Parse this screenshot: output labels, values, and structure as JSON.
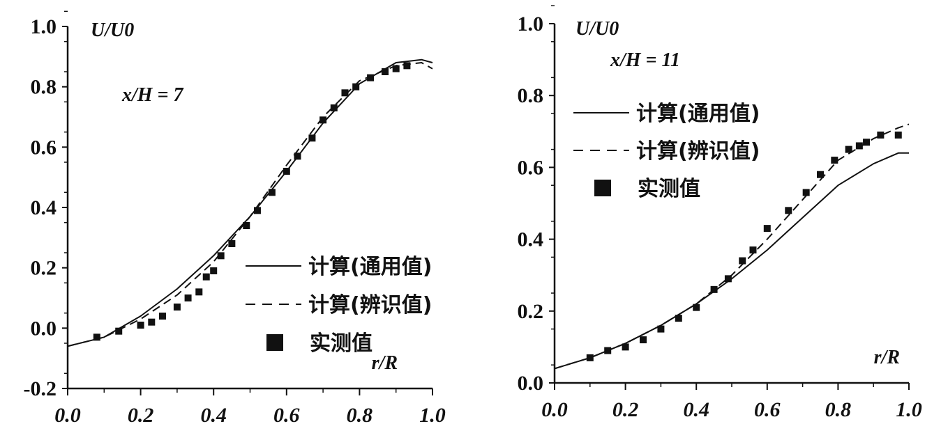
{
  "chart_data": [
    {
      "type": "line",
      "ylabel": "U/U0",
      "xlabel": "r/R",
      "annotation": "x/H = 7",
      "xlim": [
        0,
        1.0
      ],
      "ylim": [
        -0.2,
        1.0
      ],
      "xticks": [
        "0.0",
        "0.2",
        "0.4",
        "0.6",
        "0.8",
        "1.0"
      ],
      "yticks": [
        "-0.2",
        "0.0",
        "0.2",
        "0.4",
        "0.6",
        "0.8",
        "1.0"
      ],
      "legend": {
        "placement": "bottom-right",
        "entries": [
          "计算(通用值)",
          "计算(辨识值)",
          "实测值"
        ]
      },
      "series": [
        {
          "name": "计算(通用值)",
          "style": "solid",
          "x": [
            0,
            0.1,
            0.2,
            0.3,
            0.4,
            0.5,
            0.6,
            0.7,
            0.8,
            0.9,
            0.97,
            1.0
          ],
          "y": [
            -0.06,
            -0.03,
            0.04,
            0.13,
            0.24,
            0.37,
            0.52,
            0.68,
            0.81,
            0.88,
            0.89,
            0.88
          ]
        },
        {
          "name": "计算(辨识值)",
          "style": "dashed",
          "x": [
            0,
            0.1,
            0.2,
            0.3,
            0.4,
            0.5,
            0.6,
            0.7,
            0.8,
            0.9,
            0.97,
            1.0
          ],
          "y": [
            -0.06,
            -0.03,
            0.03,
            0.11,
            0.22,
            0.37,
            0.54,
            0.7,
            0.82,
            0.87,
            0.88,
            0.86
          ]
        },
        {
          "name": "实测值",
          "style": "markers",
          "x": [
            0.08,
            0.14,
            0.2,
            0.23,
            0.26,
            0.3,
            0.33,
            0.36,
            0.38,
            0.4,
            0.42,
            0.45,
            0.49,
            0.52,
            0.56,
            0.6,
            0.63,
            0.67,
            0.7,
            0.73,
            0.76,
            0.79,
            0.83,
            0.87,
            0.9,
            0.93
          ],
          "y": [
            -0.03,
            -0.01,
            0.01,
            0.02,
            0.04,
            0.07,
            0.1,
            0.12,
            0.17,
            0.19,
            0.24,
            0.28,
            0.34,
            0.39,
            0.45,
            0.52,
            0.57,
            0.63,
            0.69,
            0.73,
            0.78,
            0.8,
            0.83,
            0.85,
            0.86,
            0.87
          ]
        }
      ]
    },
    {
      "type": "line",
      "ylabel": "U/U0",
      "xlabel": "r/R",
      "annotation": "x/H = 11",
      "xlim": [
        0,
        1.0
      ],
      "ylim": [
        0,
        1.0
      ],
      "xticks": [
        "0.0",
        "0.2",
        "0.4",
        "0.6",
        "0.8",
        "1.0"
      ],
      "yticks": [
        "0.0",
        "0.2",
        "0.4",
        "0.6",
        "0.8",
        "1.0"
      ],
      "legend": {
        "placement": "top-left",
        "entries": [
          "计算(通用值)",
          "计算(辨识值)",
          "实测值"
        ]
      },
      "series": [
        {
          "name": "计算(通用值)",
          "style": "solid",
          "x": [
            0,
            0.1,
            0.2,
            0.3,
            0.4,
            0.5,
            0.6,
            0.7,
            0.8,
            0.9,
            0.97,
            1.0
          ],
          "y": [
            0.04,
            0.07,
            0.11,
            0.16,
            0.22,
            0.29,
            0.37,
            0.46,
            0.55,
            0.61,
            0.64,
            0.64
          ]
        },
        {
          "name": "计算(辨识值)",
          "style": "dashed",
          "x": [
            0,
            0.1,
            0.2,
            0.3,
            0.4,
            0.5,
            0.6,
            0.7,
            0.8,
            0.9,
            0.97,
            1.0
          ],
          "y": [
            0.04,
            0.07,
            0.11,
            0.16,
            0.22,
            0.3,
            0.4,
            0.51,
            0.62,
            0.68,
            0.71,
            0.72
          ]
        },
        {
          "name": "实测值",
          "style": "markers",
          "x": [
            0.1,
            0.15,
            0.2,
            0.25,
            0.3,
            0.35,
            0.4,
            0.45,
            0.49,
            0.53,
            0.56,
            0.6,
            0.66,
            0.71,
            0.75,
            0.79,
            0.83,
            0.86,
            0.88,
            0.92,
            0.97
          ],
          "y": [
            0.07,
            0.09,
            0.1,
            0.12,
            0.15,
            0.18,
            0.21,
            0.26,
            0.29,
            0.34,
            0.37,
            0.43,
            0.48,
            0.53,
            0.58,
            0.62,
            0.65,
            0.66,
            0.67,
            0.69,
            0.69
          ]
        }
      ]
    }
  ]
}
